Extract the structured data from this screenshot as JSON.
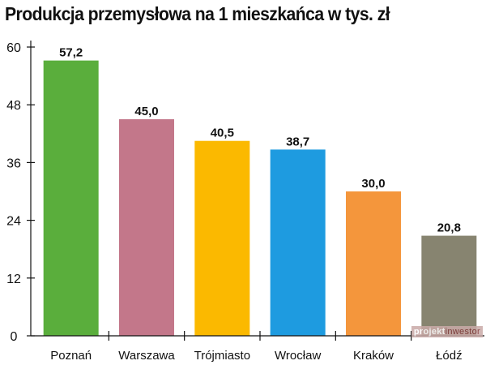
{
  "chart_data": {
    "type": "bar",
    "title": "Produkcja przemysłowa na 1 mieszkańca w tys. zł",
    "categories": [
      "Poznań",
      "Warszawa",
      "Trójmiasto",
      "Wrocław",
      "Kraków",
      "Łódź"
    ],
    "values": [
      57.2,
      45.0,
      40.5,
      38.7,
      30.0,
      20.8
    ],
    "value_labels": [
      "57,2",
      "45,0",
      "40,5",
      "38,7",
      "30,0",
      "20,8"
    ],
    "colors": [
      "#5aae3c",
      "#c3778a",
      "#fbb900",
      "#1e9be0",
      "#f4963c",
      "#878470"
    ],
    "ylim": [
      0,
      60
    ],
    "yticks": [
      0,
      12,
      24,
      36,
      48,
      60
    ],
    "grid": false,
    "xlabel": "",
    "ylabel": ""
  },
  "watermark": {
    "part1": "projekt",
    "part2": "inwestor"
  }
}
